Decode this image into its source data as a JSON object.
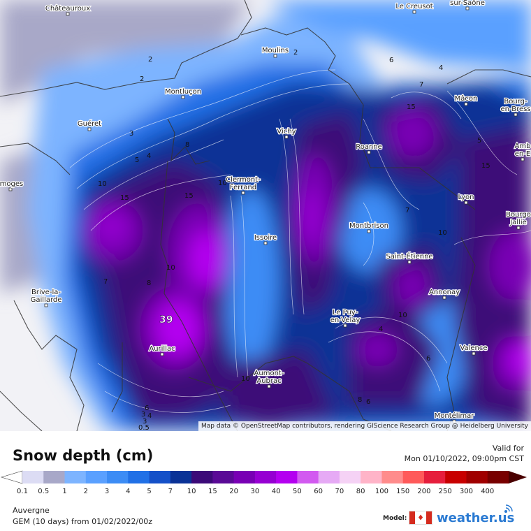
{
  "map": {
    "attribution": "Map data © OpenStreetMap contributors, rendering GIScience Research Group @ Heidelberg University",
    "max_value_label": "39",
    "cities": [
      {
        "name": "Châteauroux",
        "lines": [
          "Châteauroux"
        ]
      },
      {
        "name": "Le Creusot",
        "lines": [
          "Le Creusot"
        ]
      },
      {
        "name": "Chalon-sur-Saône",
        "lines": [
          "Chalon-",
          "sur-Saône"
        ]
      },
      {
        "name": "Moulins",
        "lines": [
          "Moulins"
        ]
      },
      {
        "name": "Montluçon",
        "lines": [
          "Montluçon"
        ]
      },
      {
        "name": "Mâcon",
        "lines": [
          "Mâcon"
        ]
      },
      {
        "name": "Bourg-en-Bresse",
        "lines": [
          "Bourg-",
          "en-Bress"
        ]
      },
      {
        "name": "Guéret",
        "lines": [
          "Guéret"
        ]
      },
      {
        "name": "Vichy",
        "lines": [
          "Vichy"
        ]
      },
      {
        "name": "Roanne",
        "lines": [
          "Roanne"
        ]
      },
      {
        "name": "Amb-en-E",
        "lines": [
          "Amb",
          "en-E"
        ]
      },
      {
        "name": "Limoges",
        "lines": [
          "imoges"
        ]
      },
      {
        "name": "Clermont-Ferrand",
        "lines": [
          "Clermont-",
          "Ferrand"
        ]
      },
      {
        "name": "Lyon",
        "lines": [
          "Lyon"
        ]
      },
      {
        "name": "Bourgoin-Jallieu",
        "lines": [
          "Bourgo",
          "Jallie"
        ]
      },
      {
        "name": "Montbrison",
        "lines": [
          "Montbrison"
        ]
      },
      {
        "name": "Issoire",
        "lines": [
          "Issoire"
        ]
      },
      {
        "name": "Saint-Étienne",
        "lines": [
          "Saint-Étienne"
        ]
      },
      {
        "name": "Annonay",
        "lines": [
          "Annonay"
        ]
      },
      {
        "name": "Brive-la-Gaillarde",
        "lines": [
          "Brive-la-",
          "Gaillarde"
        ]
      },
      {
        "name": "Le Puy-en-Velay",
        "lines": [
          "Le Puy-",
          "en-Velay"
        ]
      },
      {
        "name": "Aurillac",
        "lines": [
          "Aurillac"
        ]
      },
      {
        "name": "Valence",
        "lines": [
          "Valence"
        ]
      },
      {
        "name": "Aumont-Aubrac",
        "lines": [
          "Aumont-",
          "Aubrac"
        ]
      },
      {
        "name": "Montélimar",
        "lines": [
          "Montélimar"
        ]
      }
    ],
    "contour_labels": [
      "2",
      "2",
      "2",
      "3",
      "4",
      "5",
      "6",
      "7",
      "4",
      "5",
      "8",
      "10",
      "15",
      "15",
      "10",
      "7",
      "15",
      "10",
      "15",
      "10",
      "7",
      "6",
      "4",
      "3",
      "0.5",
      "10",
      "8",
      "6",
      "6",
      "4",
      "8",
      "10",
      "3"
    ]
  },
  "header": {
    "title": "Snow depth (cm)",
    "valid_label": "Valid for",
    "valid_time": "Mon 01/10/2022, 09:00pm CST"
  },
  "legend": {
    "values": [
      "0.1",
      "0.5",
      "1",
      "2",
      "3",
      "4",
      "5",
      "7",
      "10",
      "15",
      "20",
      "30",
      "40",
      "50",
      "60",
      "70",
      "80",
      "100",
      "150",
      "200",
      "250",
      "300",
      "400"
    ],
    "colors": [
      "#dcdcf4",
      "#a8a8c8",
      "#7db4ff",
      "#5aa0ff",
      "#3c8cf5",
      "#2070e6",
      "#1450c8",
      "#0a3296",
      "#3c0a78",
      "#5a0a96",
      "#7800b4",
      "#9600d2",
      "#b400f0",
      "#d25af0",
      "#e6aaf5",
      "#f5d2f5",
      "#ffb4c8",
      "#ff8c8c",
      "#ff5a5a",
      "#e61e3c",
      "#c80000",
      "#a00000",
      "#780000"
    ]
  },
  "footer": {
    "region": "Auvergne",
    "model_run": "GEM (10 days) from 01/02/2022/00z",
    "model_label": "Model:",
    "brand": "weather.us"
  }
}
